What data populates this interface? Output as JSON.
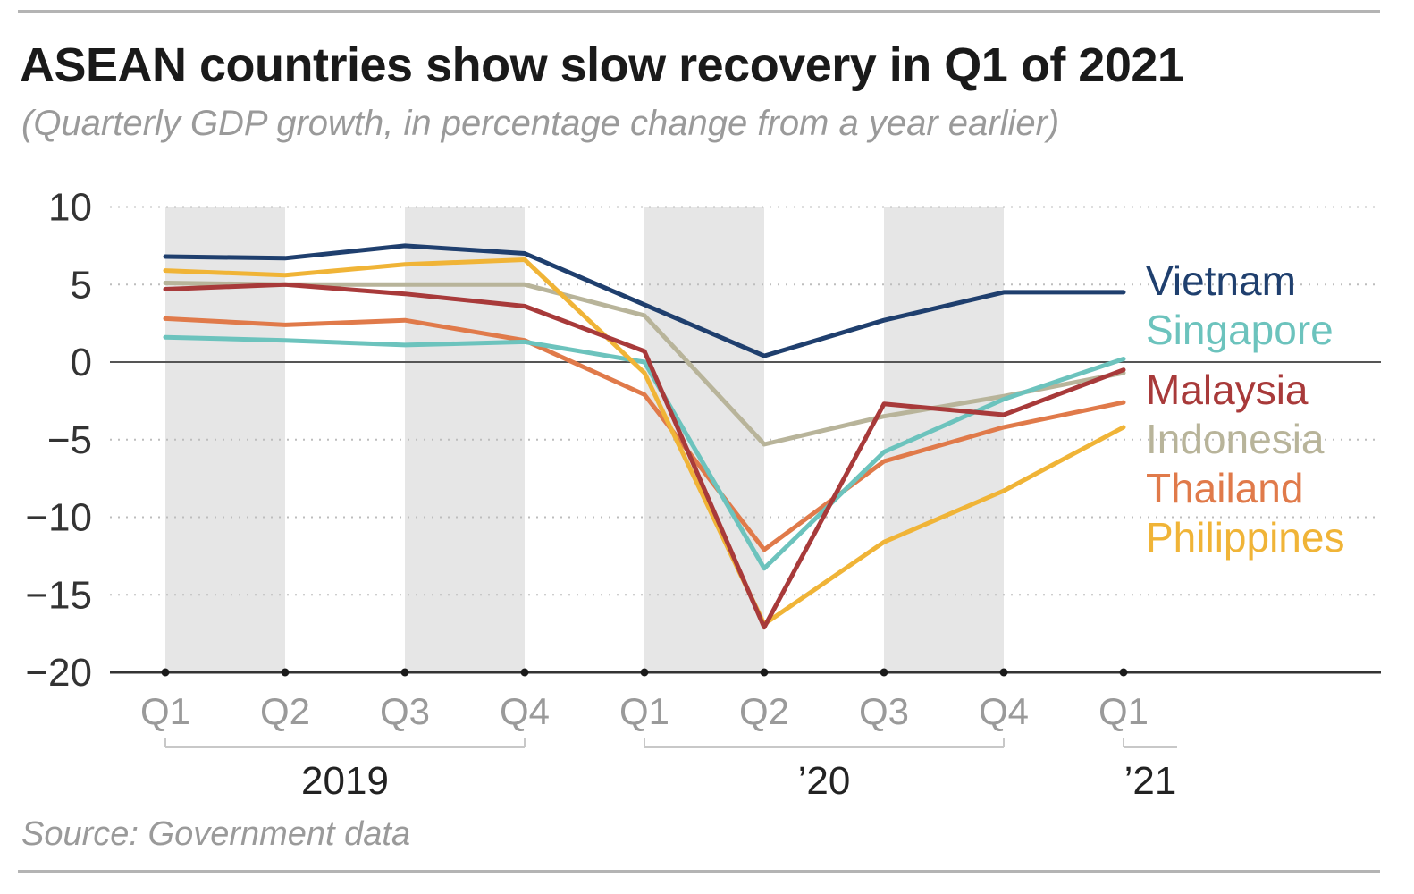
{
  "title": "ASEAN countries show slow recovery in Q1 of 2021",
  "subtitle": "(Quarterly GDP growth, in percentage change from a year earlier)",
  "source": "Source: Government data",
  "chart_data": {
    "type": "line",
    "title": "ASEAN countries show slow recovery in Q1 of 2021",
    "xlabel": "",
    "ylabel": "",
    "ylim": [
      -20,
      10
    ],
    "yticks": [
      10,
      5,
      0,
      -5,
      -10,
      -15,
      -20
    ],
    "ytick_labels": [
      "10",
      "5",
      "0",
      "−5",
      "−10",
      "−15",
      "−20"
    ],
    "categories": [
      "Q1",
      "Q2",
      "Q3",
      "Q4",
      "Q1",
      "Q2",
      "Q3",
      "Q4",
      "Q1"
    ],
    "year_groups": [
      {
        "label": "2019",
        "start": 0,
        "end": 3
      },
      {
        "label": "’20",
        "start": 4,
        "end": 7
      },
      {
        "label": "’21",
        "start": 8,
        "end": 8
      }
    ],
    "shaded_quarters": [
      0,
      2,
      4,
      6
    ],
    "grid": "dotted-horizontal",
    "legend": "right, labels at line ends",
    "series": [
      {
        "name": "Vietnam",
        "color": "#1f3f6e",
        "values": [
          6.8,
          6.7,
          7.5,
          7.0,
          3.7,
          0.4,
          2.7,
          4.5,
          4.5
        ]
      },
      {
        "name": "Singapore",
        "color": "#6cc3bd",
        "values": [
          1.6,
          1.4,
          1.1,
          1.3,
          0.0,
          -13.3,
          -5.8,
          -2.4,
          0.2
        ]
      },
      {
        "name": "Malaysia",
        "color": "#a83a3a",
        "values": [
          4.7,
          5.0,
          4.4,
          3.6,
          0.7,
          -17.1,
          -2.7,
          -3.4,
          -0.5
        ]
      },
      {
        "name": "Indonesia",
        "color": "#b8b49a",
        "values": [
          5.1,
          5.0,
          5.0,
          5.0,
          3.0,
          -5.3,
          -3.5,
          -2.2,
          -0.7
        ]
      },
      {
        "name": "Thailand",
        "color": "#e07a4a",
        "values": [
          2.8,
          2.4,
          2.7,
          1.4,
          -2.1,
          -12.1,
          -6.4,
          -4.2,
          -2.6
        ]
      },
      {
        "name": "Philippines",
        "color": "#f0b437",
        "values": [
          5.9,
          5.6,
          6.3,
          6.6,
          -0.7,
          -16.9,
          -11.6,
          -8.3,
          -4.2
        ]
      }
    ]
  }
}
